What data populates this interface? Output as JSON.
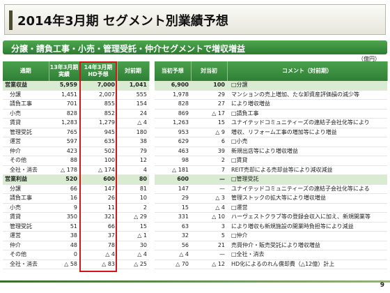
{
  "title": "2014年3月期 セグメント別業績予想",
  "subtitle": "分譲・請負工事・小売・管理受託・仲介セグメントで増収増益",
  "unit": "（億円）",
  "headers": {
    "segment": "通期",
    "actual_line1": "13年3月期",
    "actual_line2": "実績",
    "forecast_line1": "14年3月期",
    "forecast_line2": "HD予想",
    "yoy": "対前期",
    "initial": "当初予想",
    "vs_initial": "対当初",
    "comment": "コメント（対前期）"
  },
  "rows": [
    {
      "label": "営業収益",
      "actual": "5,959",
      "forecast": "7,000",
      "yoy": "1,041",
      "initial": "6,900",
      "vs_initial": "100",
      "comment": "□分譲",
      "section": true
    },
    {
      "label": "分譲",
      "actual": "1,451",
      "forecast": "2,007",
      "yoy": "555",
      "initial": "1,978",
      "vs_initial": "29",
      "comment": "マンションの売上増加、たな卸資産評価損の減少等"
    },
    {
      "label": "請負工事",
      "actual": "701",
      "forecast": "855",
      "yoy": "154",
      "initial": "828",
      "vs_initial": "27",
      "comment": "により増収増益"
    },
    {
      "label": "小売",
      "actual": "828",
      "forecast": "852",
      "yoy": "24",
      "initial": "869",
      "vs_initial": "△ 17",
      "comment": "□請負工事"
    },
    {
      "label": "賃貸",
      "actual": "1,283",
      "forecast": "1,279",
      "yoy": "△ 4",
      "initial": "1,263",
      "vs_initial": "15",
      "comment": "ユナイテッドコミュニティーズの連結子会社化等により"
    },
    {
      "label": "管理受託",
      "actual": "765",
      "forecast": "945",
      "yoy": "180",
      "initial": "953",
      "vs_initial": "△ 9",
      "comment": "増収、リフォーム工事の増加等により増益"
    },
    {
      "label": "運営",
      "actual": "597",
      "forecast": "635",
      "yoy": "38",
      "initial": "629",
      "vs_initial": "6",
      "comment": "□小売"
    },
    {
      "label": "仲介",
      "actual": "423",
      "forecast": "502",
      "yoy": "79",
      "initial": "463",
      "vs_initial": "39",
      "comment": "新規出店等により増収増益"
    },
    {
      "label": "その他",
      "actual": "88",
      "forecast": "100",
      "yoy": "12",
      "initial": "98",
      "vs_initial": "2",
      "comment": "□賃貸"
    },
    {
      "label": "全社・消去",
      "actual": "△ 178",
      "forecast": "△ 174",
      "yoy": "4",
      "initial": "△ 181",
      "vs_initial": "7",
      "comment": "REIT売却による売却益等により減収減益"
    },
    {
      "label": "営業利益",
      "actual": "520",
      "forecast": "600",
      "yoy": "80",
      "initial": "600",
      "vs_initial": "—",
      "comment": "□管理受託",
      "section": true
    },
    {
      "label": "分譲",
      "actual": "66",
      "forecast": "147",
      "yoy": "81",
      "initial": "147",
      "vs_initial": "—",
      "comment": "ユナイテッドコミュニティーズの連結子会社化等による"
    },
    {
      "label": "請負工事",
      "actual": "16",
      "forecast": "26",
      "yoy": "10",
      "initial": "29",
      "vs_initial": "△ 3",
      "comment": "管理ストックの拡大等により増収増益"
    },
    {
      "label": "小売",
      "actual": "9",
      "forecast": "11",
      "yoy": "2",
      "initial": "15",
      "vs_initial": "△ 4",
      "comment": "□運営"
    },
    {
      "label": "賃貸",
      "actual": "350",
      "forecast": "321",
      "yoy": "△ 29",
      "initial": "331",
      "vs_initial": "△ 10",
      "comment": "ハーヴェストクラブ等の登録会収入に加え、新規開業等"
    },
    {
      "label": "管理受託",
      "actual": "51",
      "forecast": "66",
      "yoy": "15",
      "initial": "63",
      "vs_initial": "3",
      "comment": "により増収も新規施設の開業時負担等により減益"
    },
    {
      "label": "運営",
      "actual": "38",
      "forecast": "37",
      "yoy": "△ 1",
      "initial": "32",
      "vs_initial": "5",
      "comment": "□仲介"
    },
    {
      "label": "仲介",
      "actual": "48",
      "forecast": "78",
      "yoy": "30",
      "initial": "56",
      "vs_initial": "21",
      "comment": "売買仲介・販売受託により増収増益"
    },
    {
      "label": "その他",
      "actual": "0",
      "forecast": "△ 4",
      "yoy": "△ 4",
      "initial": "△ 4",
      "vs_initial": "—",
      "comment": "□全社・消去"
    },
    {
      "label": "全社・消去",
      "actual": "△ 58",
      "forecast": "△ 83",
      "yoy": "△ 25",
      "initial": "△ 70",
      "vs_initial": "△ 12",
      "comment": "HD化によるのれん償却費（△12億）計上"
    }
  ],
  "page_number": "9",
  "colors": {
    "header_green": "#3a8f3f",
    "section_row": "#d9ecd2",
    "highlight_border": "#d4141b"
  }
}
